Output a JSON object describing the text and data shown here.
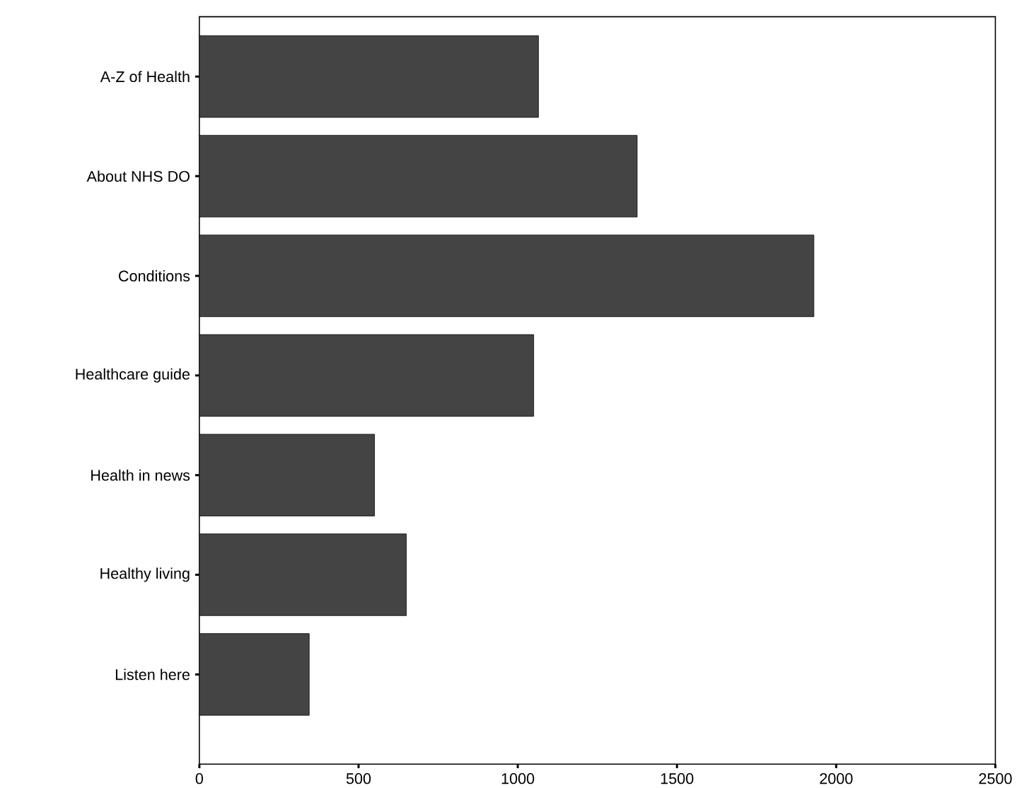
{
  "chart_data": {
    "type": "bar",
    "orientation": "horizontal",
    "categories": [
      "A-Z of Health",
      "About NHS DO",
      "Conditions",
      "Healthcare guide",
      "Health in news",
      "Healthy living",
      "Listen here"
    ],
    "values": [
      1065,
      1375,
      1930,
      1050,
      550,
      650,
      345
    ],
    "color": "#444444",
    "xlim": [
      0,
      2500
    ],
    "xticks": [
      0,
      500,
      1000,
      1500,
      2000,
      2500
    ],
    "grid": false
  }
}
